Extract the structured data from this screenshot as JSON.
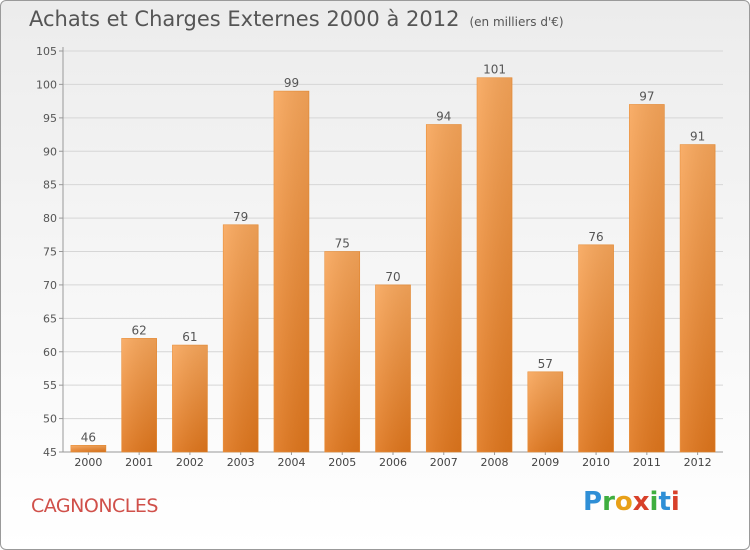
{
  "title": "Achats et Charges Externes 2000 à 2012",
  "subtitle": "(en milliers d'€)",
  "place": "CAGNONCLES",
  "logo": {
    "letters": [
      "P",
      "r",
      "o",
      "x",
      "i",
      "t",
      "i"
    ],
    "colors": [
      "#2f8fd6",
      "#3fae3f",
      "#e8a018",
      "#d8402a",
      "#3fae3f",
      "#2f8fd6",
      "#d8402a"
    ]
  },
  "colors": {
    "bar": "#f0923c",
    "title": "#555555",
    "place": "#d0504a"
  },
  "chart_data": {
    "type": "bar",
    "categories": [
      "2000",
      "2001",
      "2002",
      "2003",
      "2004",
      "2005",
      "2006",
      "2007",
      "2008",
      "2009",
      "2010",
      "2011",
      "2012"
    ],
    "values": [
      46,
      62,
      61,
      79,
      99,
      75,
      70,
      94,
      101,
      57,
      76,
      97,
      91
    ],
    "yticks": [
      45,
      50,
      55,
      60,
      65,
      70,
      75,
      80,
      85,
      90,
      95,
      100,
      105
    ],
    "ylim": [
      45,
      105
    ],
    "grid": true
  }
}
